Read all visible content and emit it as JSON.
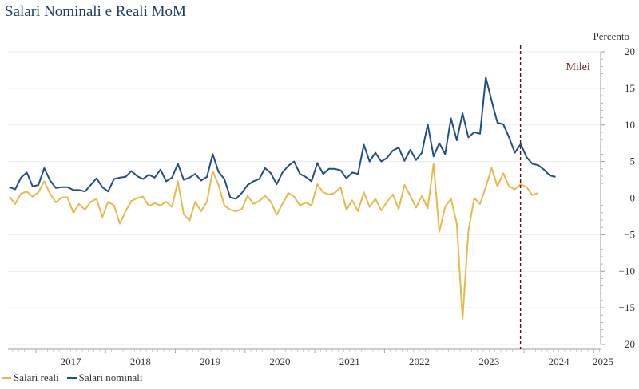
{
  "chart_data": {
    "type": "line",
    "title": "Salari Nominali e Reali MoM",
    "ylabel": "Percento",
    "ylim": [
      -20,
      20
    ],
    "yticks": [
      20,
      15,
      10,
      5,
      0,
      -5,
      -10,
      -15,
      -20
    ],
    "xlim": [
      2016.6,
      2025.1
    ],
    "year_labels": [
      "2017",
      "2018",
      "2019",
      "2020",
      "2021",
      "2022",
      "2023",
      "2024",
      "2025"
    ],
    "annotation": {
      "label": "Milei",
      "x": 2023.95
    },
    "colors": {
      "reali": "#e8b84b",
      "nominali": "#1f4e8c",
      "milei": "#7b1a1a",
      "axis": "#999999"
    },
    "series": [
      {
        "name": "Salari reali",
        "x_start": 2016.62,
        "step": 0.08333,
        "values": [
          0.2,
          -0.8,
          0.6,
          0.9,
          0.2,
          0.8,
          2.3,
          0.6,
          -0.6,
          0.1,
          0.1,
          -2.0,
          -0.8,
          -1.6,
          -0.5,
          -0.1,
          -2.6,
          -0.5,
          -1.0,
          -3.5,
          -1.8,
          -0.4,
          0.0,
          0.2,
          -1.1,
          -0.7,
          -1.0,
          -0.5,
          -1.2,
          2.3,
          -2.2,
          -3.1,
          -0.5,
          -1.8,
          -0.5,
          3.7,
          1.8,
          -1.0,
          -1.6,
          -1.8,
          -1.5,
          0.3,
          -0.8,
          -0.4,
          0.3,
          -0.5,
          -2.3,
          -0.8,
          0.7,
          0.2,
          -1.0,
          -0.6,
          -1.0,
          1.9,
          0.8,
          0.5,
          0.7,
          1.5,
          -1.6,
          -0.3,
          -1.8,
          0.8,
          -1.2,
          -0.1,
          -1.7,
          -0.5,
          0.5,
          -1.5,
          1.8,
          0.3,
          -1.3,
          0.3,
          -1.4,
          4.7,
          -4.6,
          -1.2,
          -0.1,
          -3.5,
          -16.5,
          -4.5,
          0.0,
          -0.8,
          1.5,
          4.1,
          1.6,
          3.4,
          1.6,
          1.2,
          1.9,
          1.5,
          0.4,
          0.7
        ]
      },
      {
        "name": "Salari nominali",
        "x_start": 2016.62,
        "step": 0.08333,
        "values": [
          1.5,
          1.2,
          2.8,
          3.5,
          1.6,
          1.8,
          4.1,
          2.4,
          1.4,
          1.5,
          1.5,
          1.1,
          1.1,
          0.9,
          1.8,
          2.7,
          1.5,
          0.9,
          2.6,
          2.8,
          2.9,
          3.7,
          3.0,
          2.6,
          3.2,
          2.8,
          3.9,
          2.3,
          2.8,
          4.7,
          2.5,
          2.8,
          3.3,
          2.4,
          2.9,
          6.0,
          3.6,
          2.6,
          0.1,
          -0.1,
          0.7,
          1.8,
          2.3,
          2.6,
          4.1,
          3.4,
          1.9,
          3.5,
          4.4,
          5.0,
          3.3,
          2.9,
          2.3,
          4.8,
          3.3,
          4.0,
          4.0,
          3.8,
          2.7,
          3.5,
          3.3,
          7.3,
          5.0,
          6.2,
          5.0,
          5.5,
          6.5,
          6.9,
          5.1,
          6.6,
          5.2,
          6.2,
          10.1,
          5.7,
          7.5,
          6.0,
          10.9,
          7.9,
          11.6,
          8.3,
          9.0,
          8.8,
          16.5,
          13.3,
          10.3,
          10.1,
          8.3,
          6.2,
          7.4,
          5.6,
          4.7,
          4.5,
          3.9,
          3.1,
          2.9
        ]
      }
    ]
  }
}
